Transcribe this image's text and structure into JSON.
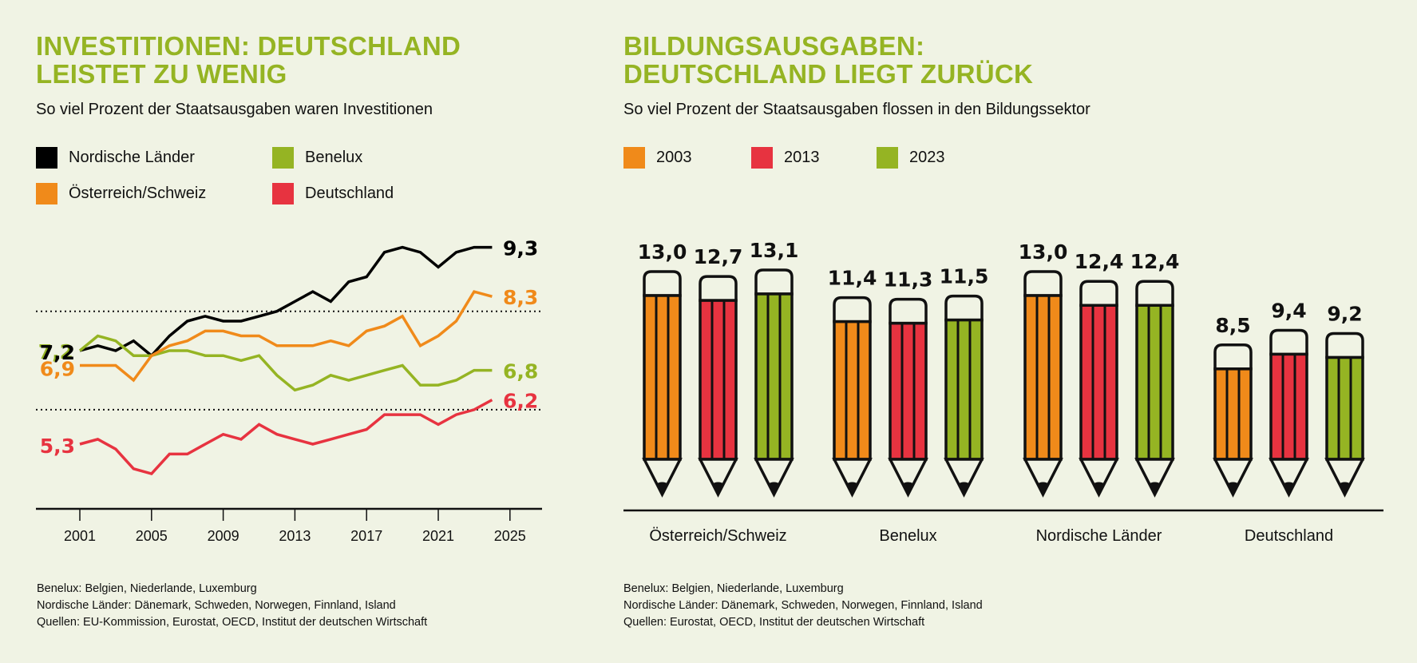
{
  "colors": {
    "background": "#f0f3e4",
    "title_green": "#95b423",
    "nordic": "#000000",
    "benelux": "#95b423",
    "austria_swiss": "#f08a1a",
    "germany": "#e73340",
    "y2003": "#f08a1a",
    "y2013": "#e73340",
    "y2023": "#95b423"
  },
  "left": {
    "title_line1": "INVESTITIONEN: DEUTSCHLAND",
    "title_line2": "LEISTET ZU WENIG",
    "subtitle": "So viel Prozent der Staatsausgaben waren Investitionen",
    "legend": [
      {
        "label": "Nordische Länder",
        "color": "#000000"
      },
      {
        "label": "Benelux",
        "color": "#95b423"
      },
      {
        "label": "Österreich/Schweiz",
        "color": "#f08a1a"
      },
      {
        "label": "Deutschland",
        "color": "#e73340"
      }
    ],
    "footnotes": [
      "Benelux: Belgien, Niederlande, Luxemburg",
      "Nordische Länder: Dänemark, Schweden, Norwegen, Finnland, Island",
      "Quellen: EU-Kommission, Eurostat, OECD, Institut der deutschen Wirtschaft"
    ]
  },
  "right": {
    "title_line1": "BILDUNGSAUSGABEN:",
    "title_line2": "DEUTSCHLAND LIEGT ZURÜCK",
    "subtitle": "So viel Prozent der Staatsausgaben flossen in den Bildungssektor",
    "legend": [
      {
        "label": "2003",
        "color": "#f08a1a"
      },
      {
        "label": "2013",
        "color": "#e73340"
      },
      {
        "label": "2023",
        "color": "#95b423"
      }
    ],
    "footnotes": [
      "Benelux: Belgien, Niederlande, Luxemburg",
      "Nordische Länder: Dänemark, Schweden, Norwegen, Finnland, Island",
      "Quellen: Eurostat, OECD, Institut der deutschen Wirtschaft"
    ]
  },
  "chart_data": [
    {
      "type": "line",
      "title": "Investitionen: Deutschland leistet zu wenig",
      "subtitle": "So viel Prozent der Staatsausgaben waren Investitionen",
      "xlabel": "",
      "ylabel": "",
      "x": [
        2001,
        2002,
        2003,
        2004,
        2005,
        2006,
        2007,
        2008,
        2009,
        2010,
        2011,
        2012,
        2013,
        2014,
        2015,
        2016,
        2017,
        2018,
        2019,
        2020,
        2021,
        2022,
        2023,
        2024
      ],
      "xticks": [
        "2001",
        "2005",
        "2009",
        "2013",
        "2017",
        "2021",
        "2025"
      ],
      "xlim": [
        1998.3,
        2026.5
      ],
      "ylim": [
        4.2,
        9.8
      ],
      "gridlines": [
        6,
        8
      ],
      "legend_position": "top-left",
      "series": [
        {
          "name": "Nordische Länder",
          "color": "#000000",
          "start_label": "7,2",
          "end_label": "9,3",
          "values": [
            7.2,
            7.3,
            7.2,
            7.4,
            7.1,
            7.5,
            7.8,
            7.9,
            7.8,
            7.8,
            7.9,
            8.0,
            8.2,
            8.4,
            8.2,
            8.6,
            8.7,
            9.2,
            9.3,
            9.2,
            8.9,
            9.2,
            9.3,
            9.3
          ]
        },
        {
          "name": "Benelux",
          "color": "#95b423",
          "start_label": "7,2",
          "end_label": "6,8",
          "values": [
            7.2,
            7.5,
            7.4,
            7.1,
            7.1,
            7.2,
            7.2,
            7.1,
            7.1,
            7.0,
            7.1,
            6.7,
            6.4,
            6.5,
            6.7,
            6.6,
            6.7,
            6.8,
            6.9,
            6.5,
            6.5,
            6.6,
            6.8,
            6.8
          ]
        },
        {
          "name": "Österreich/Schweiz",
          "color": "#f08a1a",
          "start_label": "6,9",
          "end_label": "8,3",
          "values": [
            6.9,
            6.9,
            6.9,
            6.6,
            7.1,
            7.3,
            7.4,
            7.6,
            7.6,
            7.5,
            7.5,
            7.3,
            7.3,
            7.3,
            7.4,
            7.3,
            7.6,
            7.7,
            7.9,
            7.3,
            7.5,
            7.8,
            8.4,
            8.3
          ]
        },
        {
          "name": "Deutschland",
          "color": "#e73340",
          "start_label": "5,3",
          "end_label": "6,2",
          "values": [
            5.3,
            5.4,
            5.2,
            4.8,
            4.7,
            5.1,
            5.1,
            5.3,
            5.5,
            5.4,
            5.7,
            5.5,
            5.4,
            5.3,
            5.4,
            5.5,
            5.6,
            5.9,
            5.9,
            5.9,
            5.7,
            5.9,
            6.0,
            6.2
          ]
        }
      ]
    },
    {
      "type": "bar",
      "title": "Bildungsausgaben: Deutschland liegt zurück",
      "subtitle": "So viel Prozent der Staatsausgaben flossen in den Bildungssektor",
      "xlabel": "",
      "ylabel": "",
      "categories": [
        "Österreich/Schweiz",
        "Benelux",
        "Nordische Länder",
        "Deutschland"
      ],
      "legend_position": "top-left",
      "series": [
        {
          "name": "2003",
          "color": "#f08a1a",
          "values": [
            13.0,
            11.4,
            13.0,
            8.5
          ],
          "labels": [
            "13,0",
            "11,4",
            "13,0",
            "8,5"
          ]
        },
        {
          "name": "2013",
          "color": "#e73340",
          "values": [
            12.7,
            11.3,
            12.4,
            9.4
          ],
          "labels": [
            "12,7",
            "11,3",
            "12,4",
            "9,4"
          ]
        },
        {
          "name": "2023",
          "color": "#95b423",
          "values": [
            13.1,
            11.5,
            12.4,
            9.2
          ],
          "labels": [
            "13,1",
            "11,5",
            "12,4",
            "9,2"
          ]
        }
      ]
    }
  ]
}
